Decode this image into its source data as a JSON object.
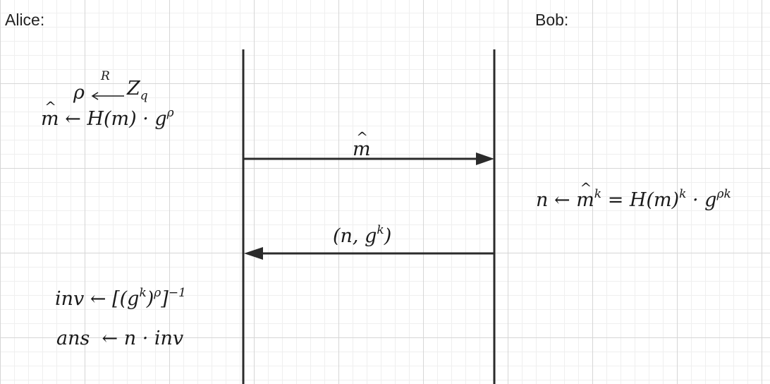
{
  "participants": {
    "alice": "Alice:",
    "bob": "Bob:"
  },
  "alice_steps": {
    "step1": {
      "lhs": "ρ",
      "arrow_label": "R",
      "rhs": "Z",
      "rhs_sub": "q"
    },
    "step2": {
      "lhs": "m",
      "rhs": "← H(m) · g",
      "rhs_sup": "ρ"
    },
    "step3": {
      "lhs": "inv",
      "rhs": "← [(g",
      "rhs_sup1": "k",
      "rhs_mid": ")",
      "rhs_sup2": "ρ",
      "rhs_end": "]",
      "rhs_sup3": "−1"
    },
    "step4": {
      "lhs": "ans",
      "rhs": "← n · inv"
    }
  },
  "bob_steps": {
    "step1": {
      "text1": "n ← ",
      "hat": "m",
      "sup1": "k",
      "text2": " = H(m)",
      "sup2": "k",
      "text3": " · g",
      "sup3": "ρk"
    }
  },
  "messages": {
    "to_bob": {
      "label": "m"
    },
    "to_alice": {
      "label_start": "(n, g",
      "label_sup": "k",
      "label_end": ")"
    }
  },
  "colors": {
    "line": "#2b2b2b",
    "grid_major": "#d6d6d6",
    "grid_minor": "#efefef"
  }
}
